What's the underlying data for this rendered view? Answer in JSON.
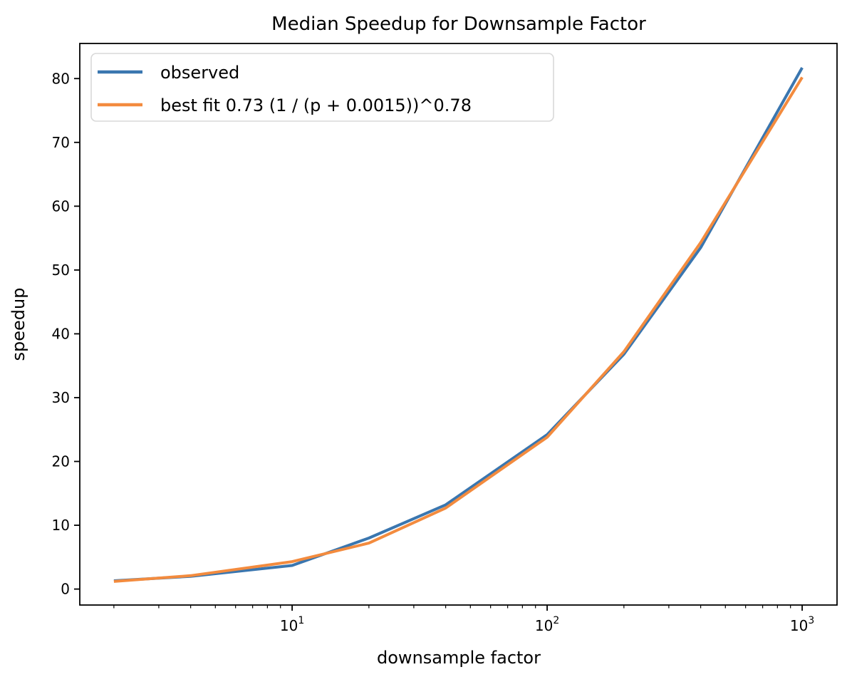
{
  "chart": {
    "title": "Median Speedup for Downsample Factor",
    "xlabel": "downsample factor",
    "ylabel": "speedup"
  },
  "chart_data": {
    "type": "line",
    "title": "Median Speedup for Downsample Factor",
    "xlabel": "downsample factor",
    "ylabel": "speedup",
    "x_scale": "log",
    "grid": false,
    "legend_position": "upper left",
    "x": [
      2,
      4,
      10,
      20,
      40,
      100,
      200,
      400,
      1000
    ],
    "series": [
      {
        "name": "observed",
        "color": "#3a76af",
        "values": [
          1.3,
          2.0,
          3.7,
          8.0,
          13.2,
          24.2,
          36.8,
          53.5,
          81.7
        ]
      },
      {
        "name": "best fit 0.73 (1 / (p + 0.0015))^0.78",
        "color": "#f38b3e",
        "values": [
          1.2,
          2.1,
          4.3,
          7.2,
          12.7,
          23.8,
          37.2,
          54.3,
          80.2
        ]
      }
    ],
    "x_ticks": [
      {
        "label": "10",
        "sup": "1",
        "value": 10
      },
      {
        "label": "10",
        "sup": "2",
        "value": 100
      },
      {
        "label": "10",
        "sup": "3",
        "value": 1000
      }
    ],
    "y_ticks": [
      0,
      10,
      20,
      30,
      40,
      50,
      60,
      70,
      80
    ],
    "xlim": [
      1.47,
      1370
    ],
    "ylim": [
      -2.5,
      85.5
    ]
  }
}
